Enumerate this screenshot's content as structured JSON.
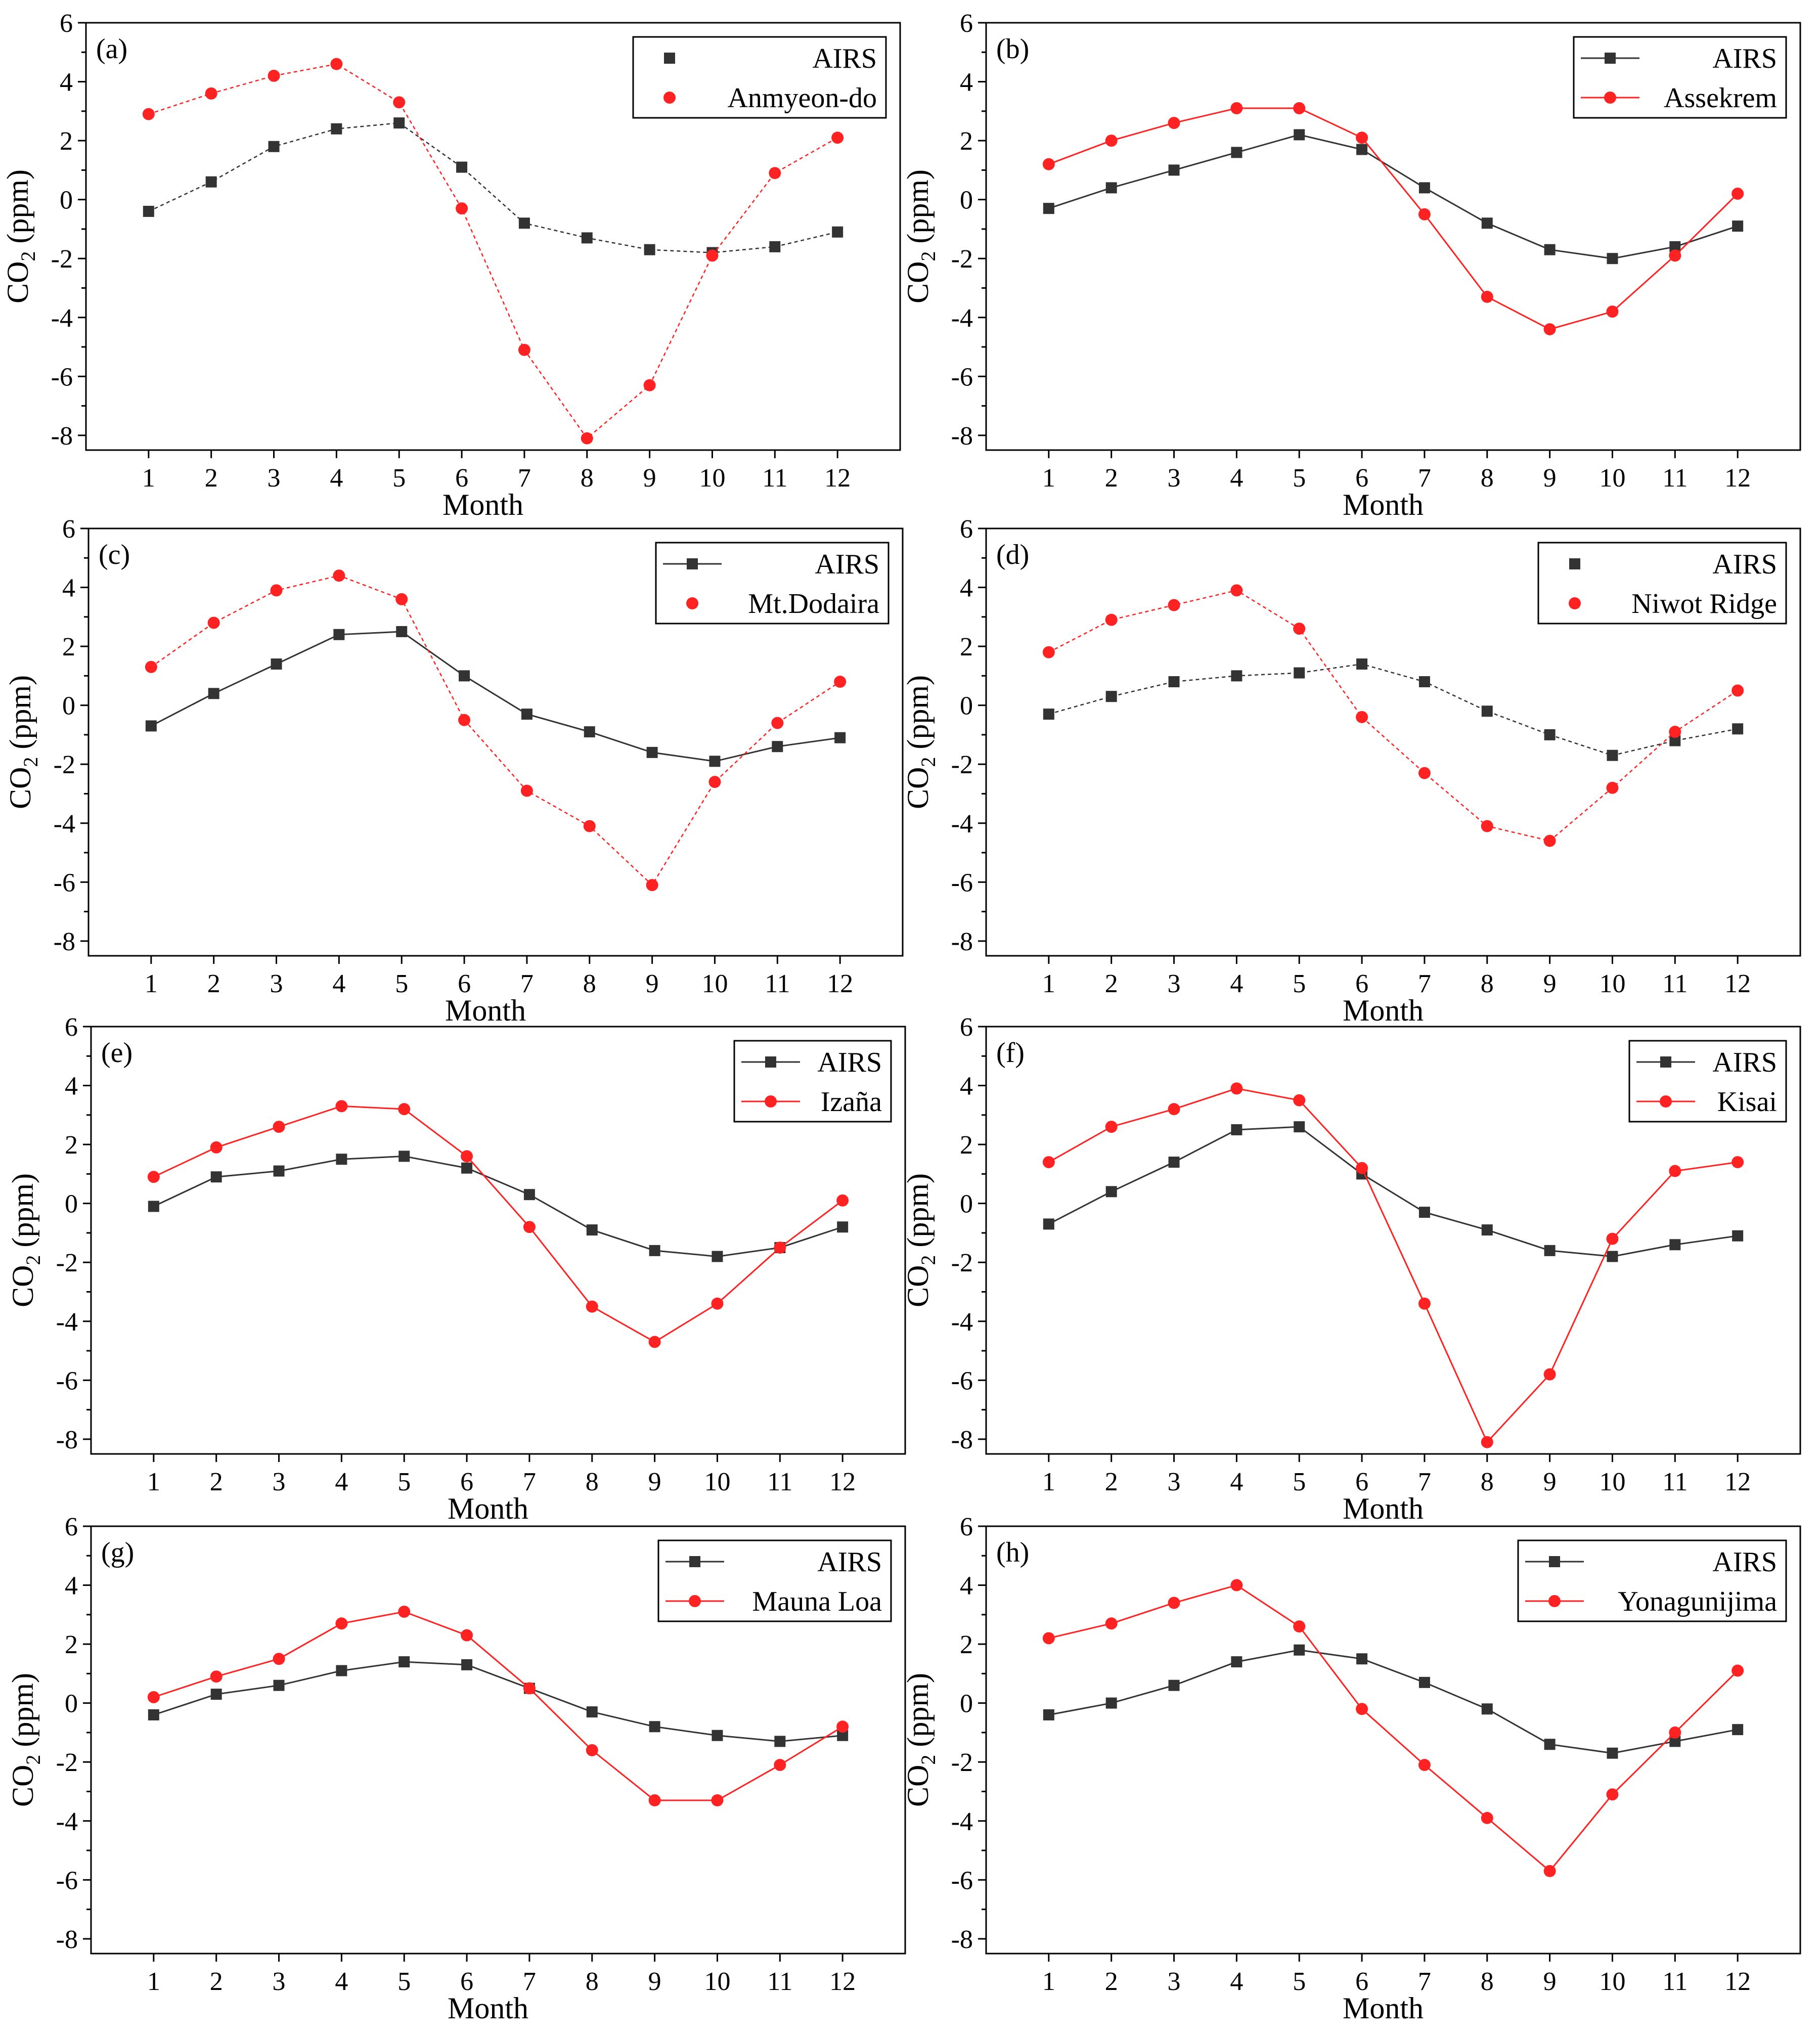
{
  "figure": {
    "x_label": "Month",
    "y_label": "CO",
    "y_label_sub": "2",
    "y_label_unit": " (ppm)",
    "colors": {
      "airs": "#333333",
      "station": "#ff2222",
      "axis": "#000000"
    }
  },
  "chart_data": [
    {
      "type": "line",
      "panel_label": "(a)",
      "title": "",
      "xlabel": "Month",
      "ylabel": "CO2 (ppm)",
      "xlim": [
        0,
        13
      ],
      "ylim": [
        -8.5,
        6
      ],
      "x_ticks": [
        1,
        2,
        3,
        4,
        5,
        6,
        7,
        8,
        9,
        10,
        11,
        12
      ],
      "y_ticks": [
        -8,
        -6,
        -4,
        -2,
        0,
        2,
        4,
        6
      ],
      "categories": [
        1,
        2,
        3,
        4,
        5,
        6,
        7,
        8,
        9,
        10,
        11,
        12
      ],
      "series": [
        {
          "name": "AIRS",
          "marker": "square",
          "line": false,
          "values": [
            -0.4,
            0.6,
            1.8,
            2.4,
            2.6,
            1.1,
            -0.8,
            -1.3,
            -1.7,
            -1.8,
            -1.6,
            -1.1
          ]
        },
        {
          "name": "Anmyeon-do",
          "marker": "circle",
          "line": false,
          "values": [
            2.9,
            3.6,
            4.2,
            4.6,
            3.3,
            -0.3,
            -5.1,
            -8.1,
            -6.3,
            -1.9,
            0.9,
            2.1
          ]
        }
      ]
    },
    {
      "type": "line",
      "panel_label": "(b)",
      "title": "",
      "xlabel": "Month",
      "ylabel": "CO2 (ppm)",
      "xlim": [
        0,
        13
      ],
      "ylim": [
        -8.5,
        6
      ],
      "x_ticks": [
        1,
        2,
        3,
        4,
        5,
        6,
        7,
        8,
        9,
        10,
        11,
        12
      ],
      "y_ticks": [
        -8,
        -6,
        -4,
        -2,
        0,
        2,
        4,
        6
      ],
      "categories": [
        1,
        2,
        3,
        4,
        5,
        6,
        7,
        8,
        9,
        10,
        11,
        12
      ],
      "series": [
        {
          "name": "AIRS",
          "marker": "square",
          "line": true,
          "values": [
            -0.3,
            0.4,
            1.0,
            1.6,
            2.2,
            1.7,
            0.4,
            -0.8,
            -1.7,
            -2.0,
            -1.6,
            -0.9
          ]
        },
        {
          "name": "Assekrem",
          "marker": "circle",
          "line": true,
          "values": [
            1.2,
            2.0,
            2.6,
            3.1,
            3.1,
            2.1,
            -0.5,
            -3.3,
            -4.4,
            -3.8,
            -1.9,
            0.2
          ]
        }
      ]
    },
    {
      "type": "line",
      "panel_label": "(c)",
      "title": "",
      "xlabel": "Month",
      "ylabel": "CO2 (ppm)",
      "xlim": [
        0,
        13
      ],
      "ylim": [
        -8.5,
        6
      ],
      "x_ticks": [
        1,
        2,
        3,
        4,
        5,
        6,
        7,
        8,
        9,
        10,
        11,
        12
      ],
      "y_ticks": [
        -8,
        -6,
        -4,
        -2,
        0,
        2,
        4,
        6
      ],
      "categories": [
        1,
        2,
        3,
        4,
        5,
        6,
        7,
        8,
        9,
        10,
        11,
        12
      ],
      "series": [
        {
          "name": "AIRS",
          "marker": "square",
          "line": true,
          "values": [
            -0.7,
            0.4,
            1.4,
            2.4,
            2.5,
            1.0,
            -0.3,
            -0.9,
            -1.6,
            -1.9,
            -1.4,
            -1.1
          ]
        },
        {
          "name": "Mt.Dodaira",
          "marker": "circle",
          "line": false,
          "values": [
            1.3,
            2.8,
            3.9,
            4.4,
            3.6,
            -0.5,
            -2.9,
            -4.1,
            -6.1,
            -2.6,
            -0.6,
            0.8
          ]
        }
      ]
    },
    {
      "type": "line",
      "panel_label": "(d)",
      "title": "",
      "xlabel": "Month",
      "ylabel": "CO2 (ppm)",
      "xlim": [
        0,
        13
      ],
      "ylim": [
        -8.5,
        6
      ],
      "x_ticks": [
        1,
        2,
        3,
        4,
        5,
        6,
        7,
        8,
        9,
        10,
        11,
        12
      ],
      "y_ticks": [
        -8,
        -6,
        -4,
        -2,
        0,
        2,
        4,
        6
      ],
      "categories": [
        1,
        2,
        3,
        4,
        5,
        6,
        7,
        8,
        9,
        10,
        11,
        12
      ],
      "series": [
        {
          "name": "AIRS",
          "marker": "square",
          "line": false,
          "values": [
            -0.3,
            0.3,
            0.8,
            1.0,
            1.1,
            1.4,
            0.8,
            -0.2,
            -1.0,
            -1.7,
            -1.2,
            -0.8
          ]
        },
        {
          "name": "Niwot Ridge",
          "marker": "circle",
          "line": false,
          "values": [
            1.8,
            2.9,
            3.4,
            3.9,
            2.6,
            -0.4,
            -2.3,
            -4.1,
            -4.6,
            -2.8,
            -0.9,
            0.5
          ]
        }
      ]
    },
    {
      "type": "line",
      "panel_label": "(e)",
      "title": "",
      "xlabel": "Month",
      "ylabel": "CO2 (ppm)",
      "xlim": [
        0,
        13
      ],
      "ylim": [
        -8.5,
        6
      ],
      "x_ticks": [
        1,
        2,
        3,
        4,
        5,
        6,
        7,
        8,
        9,
        10,
        11,
        12
      ],
      "y_ticks": [
        -8,
        -6,
        -4,
        -2,
        0,
        2,
        4,
        6
      ],
      "categories": [
        1,
        2,
        3,
        4,
        5,
        6,
        7,
        8,
        9,
        10,
        11,
        12
      ],
      "series": [
        {
          "name": "AIRS",
          "marker": "square",
          "line": true,
          "values": [
            -0.1,
            0.9,
            1.1,
            1.5,
            1.6,
            1.2,
            0.3,
            -0.9,
            -1.6,
            -1.8,
            -1.5,
            -0.8
          ]
        },
        {
          "name": "Izaña",
          "marker": "circle",
          "line": true,
          "values": [
            0.9,
            1.9,
            2.6,
            3.3,
            3.2,
            1.6,
            -0.8,
            -3.5,
            -4.7,
            -3.4,
            -1.5,
            0.1
          ]
        }
      ]
    },
    {
      "type": "line",
      "panel_label": "(f)",
      "title": "",
      "xlabel": "Month",
      "ylabel": "CO2 (ppm)",
      "xlim": [
        0,
        13
      ],
      "ylim": [
        -8.5,
        6
      ],
      "x_ticks": [
        1,
        2,
        3,
        4,
        5,
        6,
        7,
        8,
        9,
        10,
        11,
        12
      ],
      "y_ticks": [
        -8,
        -6,
        -4,
        -2,
        0,
        2,
        4,
        6
      ],
      "categories": [
        1,
        2,
        3,
        4,
        5,
        6,
        7,
        8,
        9,
        10,
        11,
        12
      ],
      "series": [
        {
          "name": "AIRS",
          "marker": "square",
          "line": true,
          "values": [
            -0.7,
            0.4,
            1.4,
            2.5,
            2.6,
            1.0,
            -0.3,
            -0.9,
            -1.6,
            -1.8,
            -1.4,
            -1.1
          ]
        },
        {
          "name": "Kisai",
          "marker": "circle",
          "line": true,
          "values": [
            1.4,
            2.6,
            3.2,
            3.9,
            3.5,
            1.2,
            -3.4,
            -8.1,
            -5.8,
            -1.2,
            1.1,
            1.4
          ]
        }
      ]
    },
    {
      "type": "line",
      "panel_label": "(g)",
      "title": "",
      "xlabel": "Month",
      "ylabel": "CO2 (ppm)",
      "xlim": [
        0,
        13
      ],
      "ylim": [
        -8.5,
        6
      ],
      "x_ticks": [
        1,
        2,
        3,
        4,
        5,
        6,
        7,
        8,
        9,
        10,
        11,
        12
      ],
      "y_ticks": [
        -8,
        -6,
        -4,
        -2,
        0,
        2,
        4,
        6
      ],
      "categories": [
        1,
        2,
        3,
        4,
        5,
        6,
        7,
        8,
        9,
        10,
        11,
        12
      ],
      "series": [
        {
          "name": "AIRS",
          "marker": "square",
          "line": true,
          "values": [
            -0.4,
            0.3,
            0.6,
            1.1,
            1.4,
            1.3,
            0.5,
            -0.3,
            -0.8,
            -1.1,
            -1.3,
            -1.1
          ]
        },
        {
          "name": "Mauna Loa",
          "marker": "circle",
          "line": true,
          "values": [
            0.2,
            0.9,
            1.5,
            2.7,
            3.1,
            2.3,
            0.5,
            -1.6,
            -3.3,
            -3.3,
            -2.1,
            -0.8
          ]
        }
      ]
    },
    {
      "type": "line",
      "panel_label": "(h)",
      "title": "",
      "xlabel": "Month",
      "ylabel": "CO2 (ppm)",
      "xlim": [
        0,
        13
      ],
      "ylim": [
        -8.5,
        6
      ],
      "x_ticks": [
        1,
        2,
        3,
        4,
        5,
        6,
        7,
        8,
        9,
        10,
        11,
        12
      ],
      "y_ticks": [
        -8,
        -6,
        -4,
        -2,
        0,
        2,
        4,
        6
      ],
      "categories": [
        1,
        2,
        3,
        4,
        5,
        6,
        7,
        8,
        9,
        10,
        11,
        12
      ],
      "series": [
        {
          "name": "AIRS",
          "marker": "square",
          "line": true,
          "values": [
            -0.4,
            0.0,
            0.6,
            1.4,
            1.8,
            1.5,
            0.7,
            -0.2,
            -1.4,
            -1.7,
            -1.3,
            -0.9
          ]
        },
        {
          "name": "Yonagunijima",
          "marker": "circle",
          "line": true,
          "values": [
            2.2,
            2.7,
            3.4,
            4.0,
            2.6,
            -0.2,
            -2.1,
            -3.9,
            -5.7,
            -3.1,
            -1.0,
            1.1
          ]
        }
      ]
    }
  ]
}
